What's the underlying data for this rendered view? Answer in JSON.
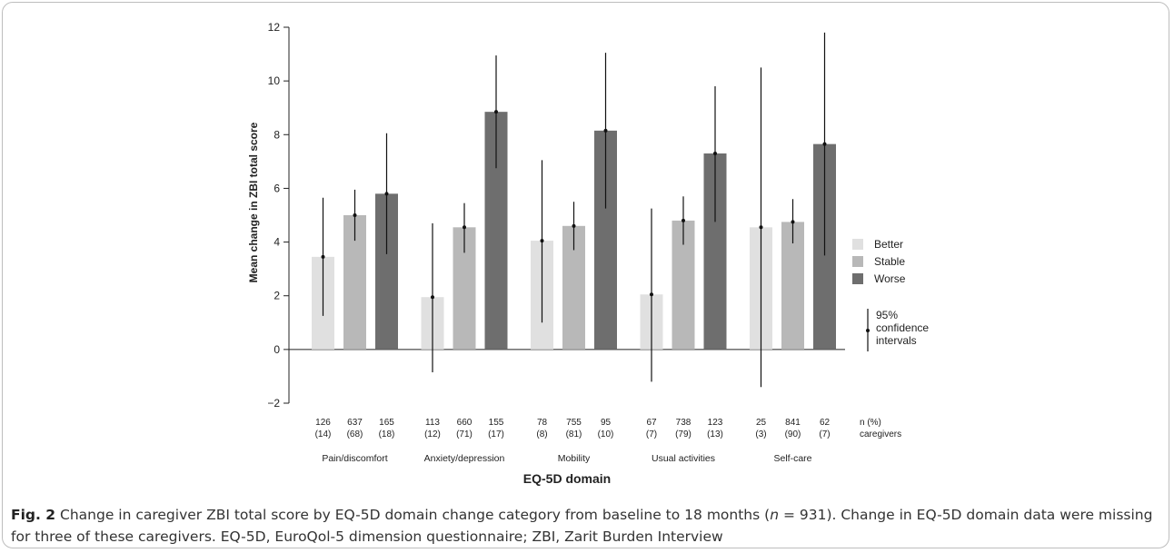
{
  "figure": {
    "caption_label": "Fig. 2",
    "caption_part1": "Change in caregiver ZBI total score by EQ-5D domain change category from baseline to 18 months (",
    "caption_italic_n": "n",
    "caption_part2": " = 931). Change in EQ-5D domain data were missing for three of these caregivers. EQ-5D, EuroQol-5 dimension questionnaire; ZBI, Zarit Burden Interview"
  },
  "legend": {
    "position": "right",
    "ci_label_lines": [
      "95%",
      "confidence",
      "intervals"
    ]
  },
  "n_header_lines": [
    "n (%)",
    "caregivers"
  ],
  "colors": {
    "Better": "#e0e0e0",
    "Stable": "#b8b8b8",
    "Worse": "#6e6e6e",
    "axis": "#222222",
    "errorbar": "#111111"
  },
  "chart_data": {
    "type": "bar",
    "title": "",
    "xlabel": "EQ-5D domain",
    "ylabel": "Mean change in ZBI total score",
    "ylim": [
      -2,
      12
    ],
    "yticks": [
      -2,
      0,
      2,
      4,
      6,
      8,
      10,
      12
    ],
    "grid": false,
    "categories": [
      "Pain/discomfort",
      "Anxiety/depression",
      "Mobility",
      "Usual activities",
      "Self-care"
    ],
    "series": [
      {
        "name": "Better",
        "values": [
          3.45,
          1.95,
          4.05,
          2.05,
          4.55
        ],
        "ci_low": [
          1.25,
          -0.85,
          1.0,
          -1.2,
          -1.4
        ],
        "ci_high": [
          5.65,
          4.7,
          7.05,
          5.25,
          10.5
        ],
        "n": [
          "126",
          "113",
          "78",
          "67",
          "25"
        ],
        "pct": [
          "(14)",
          "(12)",
          "(8)",
          "(7)",
          "(3)"
        ]
      },
      {
        "name": "Stable",
        "values": [
          5.0,
          4.55,
          4.6,
          4.8,
          4.75
        ],
        "ci_low": [
          4.05,
          3.6,
          3.7,
          3.9,
          3.95
        ],
        "ci_high": [
          5.95,
          5.45,
          5.5,
          5.7,
          5.6
        ],
        "n": [
          "637",
          "660",
          "755",
          "738",
          "841"
        ],
        "pct": [
          "(68)",
          "(71)",
          "(81)",
          "(79)",
          "(90)"
        ]
      },
      {
        "name": "Worse",
        "values": [
          5.8,
          8.85,
          8.15,
          7.3,
          7.65
        ],
        "ci_low": [
          3.55,
          6.75,
          5.25,
          4.75,
          3.5
        ],
        "ci_high": [
          8.05,
          10.95,
          11.05,
          9.8,
          11.8
        ],
        "n": [
          "165",
          "155",
          "95",
          "123",
          "62"
        ],
        "pct": [
          "(18)",
          "(17)",
          "(10)",
          "(13)",
          "(7)"
        ]
      }
    ]
  }
}
